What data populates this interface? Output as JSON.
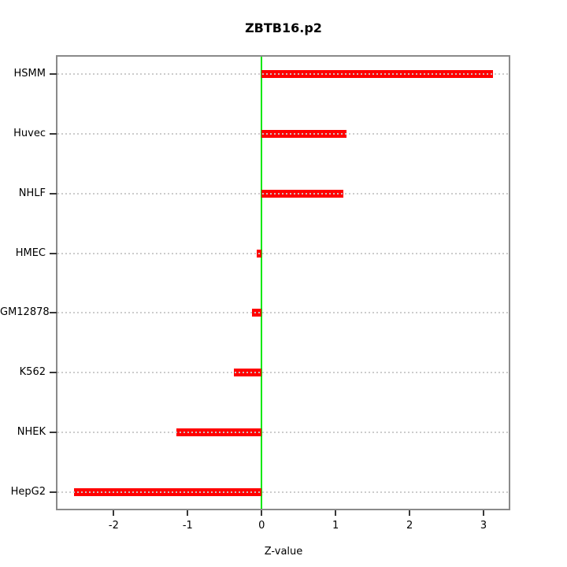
{
  "chart_data": {
    "type": "bar",
    "orientation": "horizontal",
    "title": "ZBTB16.p2",
    "xlabel": "Z-value",
    "ylabel": "",
    "categories": [
      "HSMM",
      "Huvec",
      "NHLF",
      "HMEC",
      "GM12878",
      "K562",
      "NHEK",
      "HepG2"
    ],
    "values": [
      3.13,
      1.15,
      1.1,
      -0.07,
      -0.13,
      -0.38,
      -1.15,
      -2.54
    ],
    "xticks": [
      -2,
      -1,
      0,
      1,
      2,
      3
    ],
    "xtick_labels": [
      "-2",
      "-1",
      "0",
      "1",
      "2",
      "3"
    ],
    "xlim": [
      -2.76,
      3.34
    ],
    "zero_reference_line": 0,
    "grid": "dotted horizontal gridline at each category, spanning full plot width, drawn over bars",
    "legend": "none",
    "colors": {
      "bar": "#ff0000",
      "zero_line": "#00e800",
      "gridline": "#c9c9c9",
      "frame": "#8a8a8a",
      "tick": "#383838",
      "text": "#000000",
      "background": "#ffffff"
    }
  }
}
